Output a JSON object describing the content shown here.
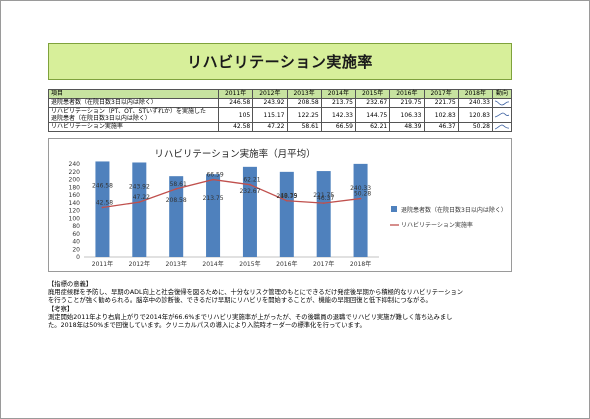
{
  "title": "リハビリテーション実施率",
  "table": {
    "headers": [
      "項目",
      "2011年",
      "2012年",
      "2013年",
      "2014年",
      "2015年",
      "2016年",
      "2017年",
      "2018年",
      "動向"
    ],
    "rows": [
      {
        "label": "退院患者数（在院日数3日以内は除く）",
        "label2": "",
        "values": [
          "246.58",
          "243.92",
          "208.58",
          "213.75",
          "232.67",
          "219.75",
          "221.75",
          "240.33"
        ]
      },
      {
        "label": "リハビリテーション（PT、OT、STいずれか）を実施した",
        "label2": "退院患者（在院日数3日以内は除く）",
        "values": [
          "105",
          "115.17",
          "122.25",
          "142.33",
          "144.75",
          "106.33",
          "102.83",
          "120.83"
        ]
      },
      {
        "label": "リハビリテーション実施率",
        "label2": "",
        "values": [
          "42.58",
          "47.22",
          "58.61",
          "66.59",
          "62.21",
          "48.39",
          "46.37",
          "50.28"
        ]
      }
    ]
  },
  "chart_data": {
    "type": "bar",
    "title": "リハビリテーション実施率（月平均）",
    "categories": [
      "2011年",
      "2012年",
      "2013年",
      "2014年",
      "2015年",
      "2016年",
      "2017年",
      "2018年"
    ],
    "series": [
      {
        "name": "退院患者数（在院日数3日以内は除く）",
        "type": "bar",
        "axis": "left",
        "values": [
          246.58,
          243.92,
          208.58,
          213.75,
          232.67,
          219.75,
          221.75,
          240.33
        ],
        "labels": [
          "246.58",
          "243.92",
          "208.58",
          "213.75",
          "232.67",
          "219.75",
          "221.75",
          "240.33"
        ],
        "color": "#4f81bd"
      },
      {
        "name": "リハビリテーション実施率",
        "type": "line",
        "axis": "right",
        "values": [
          42.58,
          47.22,
          58.61,
          66.59,
          62.21,
          48.39,
          46.37,
          50.28
        ],
        "labels": [
          "42.58",
          "47.22",
          "58.61",
          "66.59",
          "62.21",
          "48.39",
          "46.37",
          "50.28"
        ],
        "color": "#c0504d"
      }
    ],
    "ylim": [
      0,
      250
    ],
    "yticks": [
      "0",
      "20",
      "40",
      "60",
      "80",
      "100",
      "120",
      "140",
      "160",
      "180",
      "200",
      "220",
      "240"
    ],
    "y2lim": [
      0,
      80
    ],
    "legend": "right",
    "grid": false
  },
  "notes": {
    "heading1": "【指標の意義】",
    "body1a": "廃用症候群を予防し、早期のADL向上と社会復帰を図るために、十分なリスク管理のもとにできるだけ発症後早期から積極的なリハビリテーション",
    "body1b": "を行うことが強く勧められる。脳卒中の診断後、できるだけ早期にリハビリを開始することが、機能の早期回復と低下抑制につながる。",
    "heading2": "【考察】",
    "body2a": "測定開始2011年より右肩上がりで2014年が66.6%までリハビリ実施率が上がったが、その後職員の退職でリハビリ実施が難しく落ち込みまし",
    "body2b": "た。2018年は50%まで回復しています。クリニカルパスの導入により入院時オーダーの標準化を行っています。"
  }
}
